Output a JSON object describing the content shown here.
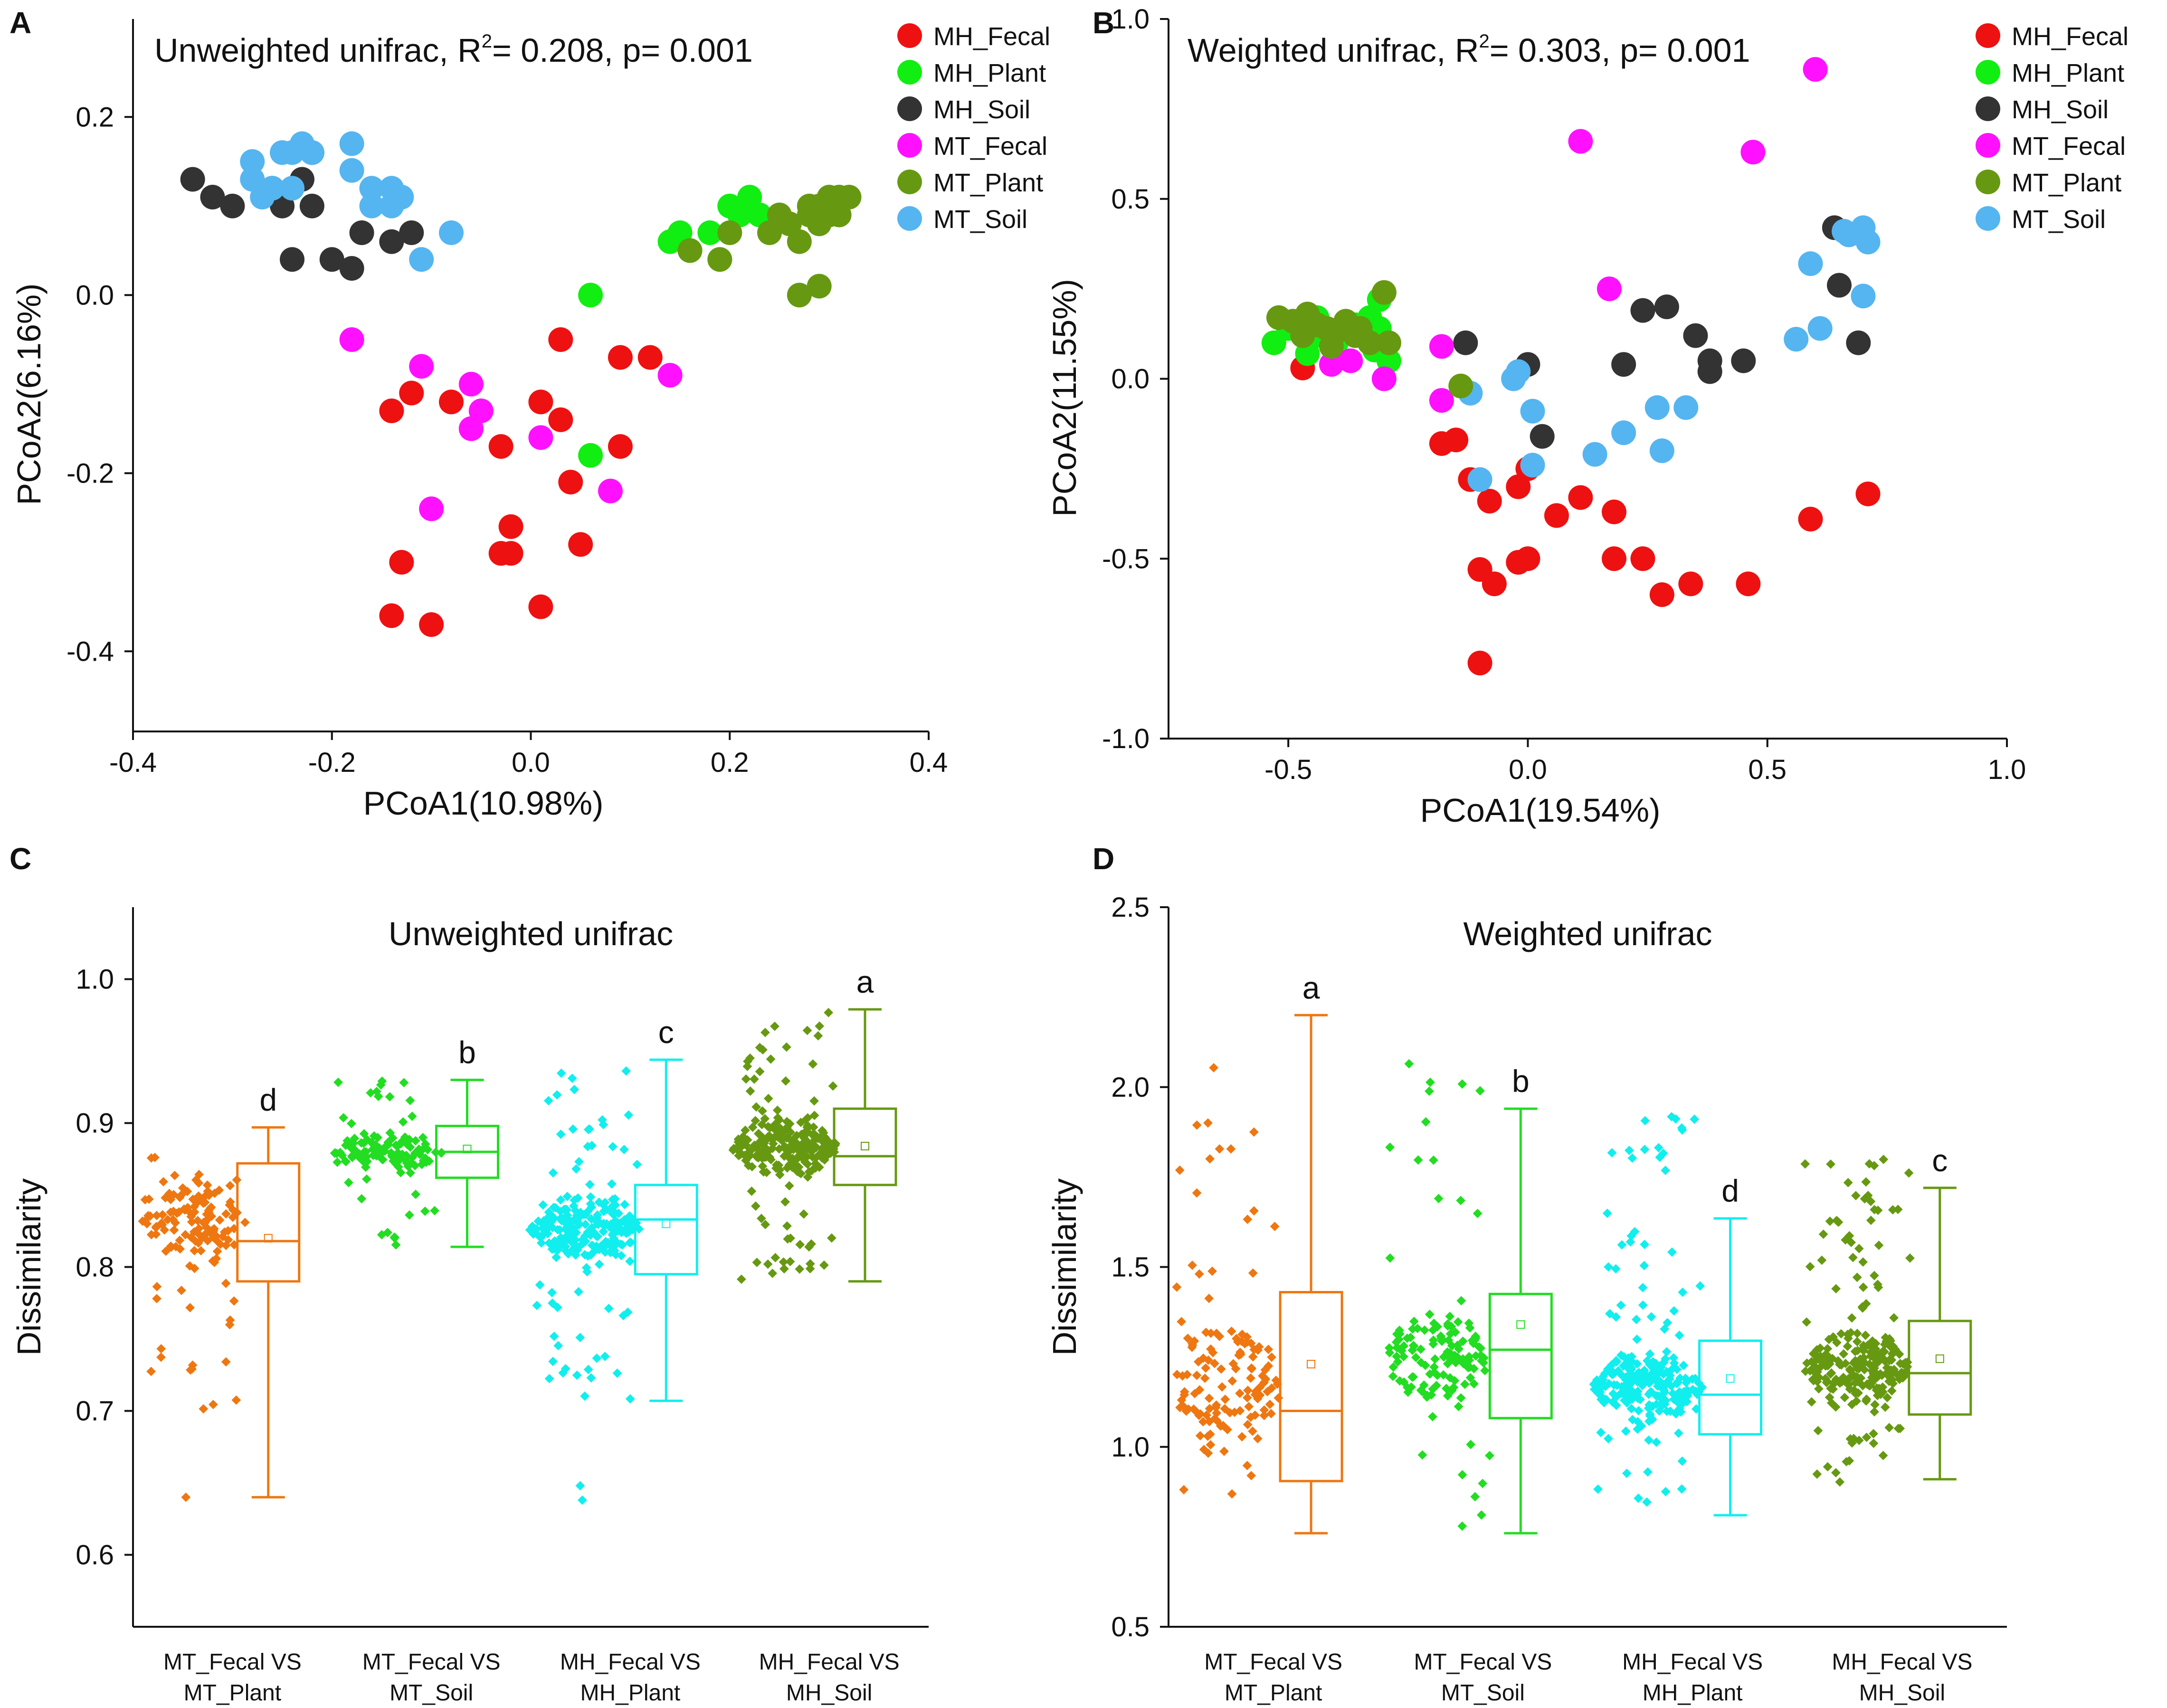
{
  "colors": {
    "MH_Fecal": "#ee1111",
    "MH_Plant": "#11ee11",
    "MH_Soil": "#333333",
    "MT_Fecal": "#ff11ff",
    "MT_Plant": "#669911",
    "MT_Soil": "#55b5f0",
    "box_orange": "#ee7711",
    "box_green": "#22dd22",
    "box_cyan": "#11eeee",
    "box_olive": "#669911"
  },
  "legend_order": [
    "MH_Fecal",
    "MH_Plant",
    "MH_Soil",
    "MT_Fecal",
    "MT_Plant",
    "MT_Soil"
  ],
  "panels": {
    "A": {
      "letter": "A"
    },
    "B": {
      "letter": "B"
    },
    "C": {
      "letter": "C"
    },
    "D": {
      "letter": "D"
    }
  },
  "chart_data": [
    {
      "id": "A",
      "type": "scatter",
      "title": "Unweighted unifrac, R",
      "title_sup": "2",
      "title_rest": "= 0.208, p= 0.001",
      "xlabel": "PCoA1(10.98%)",
      "ylabel": "PCoA2(6.16%)",
      "xlim": [
        -0.4,
        0.4
      ],
      "ylim": [
        -0.49,
        0.31
      ],
      "xticks": [
        -0.4,
        -0.2,
        0.0,
        0.2,
        0.4
      ],
      "xtick_labels": [
        "-0.4",
        "-0.2",
        "0.0",
        "0.2",
        "0.4"
      ],
      "yticks": [
        0.2,
        0.0,
        -0.2,
        -0.4
      ],
      "ytick_labels": [
        "0.2",
        "0.0",
        "-0.2",
        "-0.4"
      ],
      "legend": "top-right",
      "series": [
        {
          "name": "MH_Fecal",
          "points": [
            [
              -0.14,
              -0.13
            ],
            [
              -0.12,
              -0.11
            ],
            [
              -0.08,
              -0.12
            ],
            [
              -0.06,
              -0.15
            ],
            [
              -0.03,
              -0.17
            ],
            [
              0.01,
              -0.12
            ],
            [
              0.03,
              -0.14
            ],
            [
              0.03,
              -0.05
            ],
            [
              0.04,
              -0.21
            ],
            [
              0.05,
              -0.28
            ],
            [
              0.09,
              -0.07
            ],
            [
              0.12,
              -0.07
            ],
            [
              0.09,
              -0.17
            ],
            [
              -0.03,
              -0.29
            ],
            [
              -0.02,
              -0.29
            ],
            [
              -0.02,
              -0.26
            ],
            [
              0.01,
              -0.35
            ],
            [
              -0.13,
              -0.3
            ],
            [
              -0.14,
              -0.36
            ],
            [
              -0.1,
              -0.37
            ]
          ]
        },
        {
          "name": "MH_Plant",
          "points": [
            [
              0.06,
              0.0
            ],
            [
              0.06,
              -0.18
            ],
            [
              0.14,
              0.06
            ],
            [
              0.15,
              0.07
            ],
            [
              0.18,
              0.07
            ],
            [
              0.2,
              0.1
            ],
            [
              0.22,
              0.11
            ],
            [
              0.21,
              0.09
            ],
            [
              0.23,
              0.09
            ],
            [
              0.16,
              0.05
            ],
            [
              0.19,
              0.04
            ]
          ]
        },
        {
          "name": "MH_Soil",
          "points": [
            [
              -0.34,
              0.13
            ],
            [
              -0.32,
              0.11
            ],
            [
              -0.3,
              0.1
            ],
            [
              -0.26,
              0.12
            ],
            [
              -0.25,
              0.1
            ],
            [
              -0.23,
              0.13
            ],
            [
              -0.22,
              0.16
            ],
            [
              -0.22,
              0.1
            ],
            [
              -0.24,
              0.04
            ],
            [
              -0.2,
              0.04
            ],
            [
              -0.18,
              0.03
            ],
            [
              -0.17,
              0.07
            ],
            [
              -0.14,
              0.06
            ],
            [
              -0.12,
              0.07
            ]
          ]
        },
        {
          "name": "MT_Fecal",
          "points": [
            [
              -0.18,
              -0.05
            ],
            [
              -0.11,
              -0.08
            ],
            [
              -0.06,
              -0.1
            ],
            [
              -0.05,
              -0.13
            ],
            [
              -0.06,
              -0.15
            ],
            [
              0.01,
              -0.16
            ],
            [
              -0.1,
              -0.24
            ],
            [
              0.08,
              -0.22
            ],
            [
              0.14,
              -0.09
            ]
          ]
        },
        {
          "name": "MT_Plant",
          "points": [
            [
              0.26,
              0.08
            ],
            [
              0.27,
              0.06
            ],
            [
              0.28,
              0.09
            ],
            [
              0.29,
              0.1
            ],
            [
              0.3,
              0.11
            ],
            [
              0.31,
              0.11
            ],
            [
              0.32,
              0.11
            ],
            [
              0.3,
              0.09
            ],
            [
              0.29,
              0.08
            ],
            [
              0.31,
              0.09
            ],
            [
              0.27,
              0.0
            ],
            [
              0.29,
              0.01
            ],
            [
              0.25,
              0.09
            ],
            [
              0.16,
              0.05
            ],
            [
              0.19,
              0.04
            ],
            [
              0.2,
              0.07
            ],
            [
              0.24,
              0.07
            ],
            [
              0.28,
              0.1
            ],
            [
              0.3,
              0.1
            ]
          ]
        },
        {
          "name": "MT_Soil",
          "points": [
            [
              -0.28,
              0.15
            ],
            [
              -0.28,
              0.13
            ],
            [
              -0.27,
              0.11
            ],
            [
              -0.25,
              0.16
            ],
            [
              -0.24,
              0.16
            ],
            [
              -0.23,
              0.17
            ],
            [
              -0.22,
              0.16
            ],
            [
              -0.24,
              0.12
            ],
            [
              -0.18,
              0.17
            ],
            [
              -0.18,
              0.14
            ],
            [
              -0.16,
              0.12
            ],
            [
              -0.14,
              0.12
            ],
            [
              -0.13,
              0.11
            ],
            [
              -0.16,
              0.1
            ],
            [
              -0.14,
              0.1
            ],
            [
              -0.11,
              0.04
            ],
            [
              -0.08,
              0.07
            ],
            [
              -0.26,
              0.12
            ]
          ]
        }
      ]
    },
    {
      "id": "B",
      "type": "scatter",
      "title": "Weighted unifrac, R",
      "title_sup": "2",
      "title_rest": "= 0.303, p= 0.001",
      "xlabel": "PCoA1(19.54%)",
      "ylabel": "PCoA2(11.55%)",
      "xlim": [
        -0.75,
        1.0
      ],
      "ylim": [
        -1.0,
        1.0
      ],
      "xticks": [
        -0.5,
        0.0,
        0.5,
        1.0
      ],
      "xtick_labels": [
        "-0.5",
        "0.0",
        "0.5",
        "1.0"
      ],
      "yticks": [
        1.0,
        0.5,
        0.0,
        -0.5,
        -1.0
      ],
      "ytick_labels": [
        "1.0",
        "0.5",
        "0.0",
        "-0.5",
        "-1.0"
      ],
      "legend": "top-right",
      "series": [
        {
          "name": "MH_Fecal",
          "points": [
            [
              -0.47,
              0.03
            ],
            [
              -0.18,
              -0.18
            ],
            [
              -0.15,
              -0.17
            ],
            [
              -0.12,
              -0.28
            ],
            [
              -0.08,
              -0.34
            ],
            [
              -0.02,
              -0.3
            ],
            [
              0.0,
              -0.25
            ],
            [
              0.06,
              -0.38
            ],
            [
              0.11,
              -0.33
            ],
            [
              0.18,
              -0.37
            ],
            [
              -0.1,
              -0.53
            ],
            [
              -0.07,
              -0.57
            ],
            [
              -0.02,
              -0.51
            ],
            [
              0.0,
              -0.5
            ],
            [
              0.18,
              -0.5
            ],
            [
              0.24,
              -0.5
            ],
            [
              0.28,
              -0.6
            ],
            [
              0.34,
              -0.57
            ],
            [
              0.46,
              -0.57
            ],
            [
              0.59,
              -0.39
            ],
            [
              0.71,
              -0.32
            ],
            [
              -0.1,
              -0.79
            ]
          ]
        },
        {
          "name": "MH_Plant",
          "points": [
            [
              -0.53,
              0.1
            ],
            [
              -0.5,
              0.14
            ],
            [
              -0.46,
              0.07
            ],
            [
              -0.43,
              0.12
            ],
            [
              -0.4,
              0.1
            ],
            [
              -0.36,
              0.15
            ],
            [
              -0.33,
              0.17
            ],
            [
              -0.32,
              0.08
            ],
            [
              -0.31,
              0.14
            ],
            [
              -0.29,
              0.05
            ],
            [
              -0.31,
              0.22
            ],
            [
              -0.44,
              0.17
            ]
          ]
        },
        {
          "name": "MH_Soil",
          "points": [
            [
              -0.13,
              0.1
            ],
            [
              0.0,
              0.04
            ],
            [
              0.03,
              -0.16
            ],
            [
              0.24,
              0.19
            ],
            [
              0.29,
              0.2
            ],
            [
              0.35,
              0.12
            ],
            [
              0.38,
              0.05
            ],
            [
              0.45,
              0.05
            ],
            [
              0.64,
              0.42
            ],
            [
              0.65,
              0.26
            ],
            [
              0.69,
              0.1
            ],
            [
              0.2,
              0.04
            ],
            [
              0.38,
              0.02
            ]
          ]
        },
        {
          "name": "MT_Fecal",
          "points": [
            [
              0.6,
              0.86
            ],
            [
              0.47,
              0.63
            ],
            [
              0.11,
              0.66
            ],
            [
              0.17,
              0.25
            ],
            [
              -0.18,
              0.09
            ],
            [
              -0.18,
              -0.06
            ],
            [
              -0.3,
              0.0
            ],
            [
              -0.41,
              0.04
            ],
            [
              -0.37,
              0.05
            ]
          ]
        },
        {
          "name": "MT_Soil",
          "points": [
            [
              -0.12,
              -0.04
            ],
            [
              -0.1,
              -0.28
            ],
            [
              -0.03,
              0.0
            ],
            [
              -0.02,
              0.02
            ],
            [
              0.01,
              -0.09
            ],
            [
              0.01,
              -0.24
            ],
            [
              0.14,
              -0.21
            ],
            [
              0.2,
              -0.15
            ],
            [
              0.27,
              -0.08
            ],
            [
              0.28,
              -0.2
            ],
            [
              0.33,
              -0.08
            ],
            [
              0.56,
              0.11
            ],
            [
              0.59,
              0.32
            ],
            [
              0.61,
              0.14
            ],
            [
              0.67,
              0.4
            ],
            [
              0.7,
              0.42
            ],
            [
              0.71,
              0.38
            ],
            [
              0.7,
              0.23
            ],
            [
              0.66,
              0.41
            ]
          ]
        },
        {
          "name": "MT_Plant",
          "points": [
            [
              -0.52,
              0.17
            ],
            [
              -0.49,
              0.16
            ],
            [
              -0.46,
              0.18
            ],
            [
              -0.44,
              0.15
            ],
            [
              -0.42,
              0.14
            ],
            [
              -0.4,
              0.13
            ],
            [
              -0.38,
              0.16
            ],
            [
              -0.36,
              0.12
            ],
            [
              -0.35,
              0.14
            ],
            [
              -0.33,
              0.1
            ],
            [
              -0.3,
              0.24
            ],
            [
              -0.29,
              0.1
            ],
            [
              -0.14,
              -0.02
            ],
            [
              -0.47,
              0.12
            ],
            [
              -0.41,
              0.09
            ]
          ]
        }
      ]
    },
    {
      "id": "C",
      "type": "box",
      "title": "Unweighted unifrac",
      "ylabel": "Dissimilarity",
      "ylim": [
        0.55,
        1.05
      ],
      "yticks": [
        1.0,
        0.9,
        0.8,
        0.7,
        0.6
      ],
      "ytick_labels": [
        "1.0",
        "0.9",
        "0.8",
        "0.7",
        "0.6"
      ],
      "groups": [
        {
          "label1": "MT_Fecal VS",
          "label2": "MT_Plant",
          "letter": "d",
          "color_key": "box_orange",
          "min": 0.64,
          "q1": 0.79,
          "median": 0.818,
          "mean": 0.82,
          "q3": 0.872,
          "max": 0.897,
          "jitter_lo": 0.7,
          "jitter_hi": 0.895,
          "jitter_center": 0.81,
          "n": 140,
          "outliers": [
            0.64
          ]
        },
        {
          "label1": "MT_Fecal VS",
          "label2": "MT_Soil",
          "letter": "b",
          "color_key": "box_green",
          "min": 0.814,
          "q1": 0.862,
          "median": 0.88,
          "mean": 0.882,
          "q3": 0.898,
          "max": 0.93,
          "jitter_lo": 0.813,
          "jitter_hi": 0.93,
          "jitter_center": 0.876,
          "n": 140,
          "outliers": []
        },
        {
          "label1": "MH_Fecal VS",
          "label2": "MH_Plant",
          "letter": "c",
          "color_key": "box_cyan",
          "min": 0.707,
          "q1": 0.795,
          "median": 0.833,
          "mean": 0.83,
          "q3": 0.857,
          "max": 0.944,
          "jitter_lo": 0.705,
          "jitter_hi": 0.944,
          "jitter_center": 0.83,
          "n": 260,
          "outliers": [
            0.648,
            0.638
          ]
        },
        {
          "label1": "MH_Fecal VS",
          "label2": "MH_Soil",
          "letter": "a",
          "color_key": "box_olive",
          "min": 0.79,
          "q1": 0.857,
          "median": 0.877,
          "mean": 0.884,
          "q3": 0.91,
          "max": 0.979,
          "jitter_lo": 0.79,
          "jitter_hi": 0.979,
          "jitter_center": 0.875,
          "n": 260,
          "outliers": []
        }
      ]
    },
    {
      "id": "D",
      "type": "box",
      "title": "Weighted unifrac",
      "ylabel": "Dissimilarity",
      "ylim": [
        0.5,
        2.5
      ],
      "yticks": [
        2.5,
        2.0,
        1.5,
        1.0,
        0.5
      ],
      "ytick_labels": [
        "2.5",
        "2.0",
        "1.5",
        "1.0",
        "0.5"
      ],
      "groups": [
        {
          "label1": "MT_Fecal VS",
          "label2": "MT_Plant",
          "letter": "a",
          "color_key": "box_orange",
          "min": 0.76,
          "q1": 0.905,
          "median": 1.1,
          "mean": 1.23,
          "q3": 1.43,
          "max": 2.2,
          "jitter_lo": 0.77,
          "jitter_hi": 2.2,
          "jitter_center": 0.95,
          "n": 140,
          "outliers": []
        },
        {
          "label1": "MT_Fecal VS",
          "label2": "MT_Soil",
          "letter": "b",
          "color_key": "box_green",
          "min": 0.76,
          "q1": 1.08,
          "median": 1.27,
          "mean": 1.34,
          "q3": 1.425,
          "max": 1.94,
          "jitter_lo": 0.76,
          "jitter_hi": 2.08,
          "jitter_center": 1.25,
          "n": 140,
          "outliers": []
        },
        {
          "label1": "MH_Fecal VS",
          "label2": "MH_Plant",
          "letter": "d",
          "color_key": "box_cyan",
          "min": 0.81,
          "q1": 1.035,
          "median": 1.145,
          "mean": 1.19,
          "q3": 1.295,
          "max": 1.635,
          "jitter_lo": 0.8,
          "jitter_hi": 1.94,
          "jitter_center": 1.15,
          "n": 260,
          "outliers": []
        },
        {
          "label1": "MH_Fecal VS",
          "label2": "MH_Soil",
          "letter": "c",
          "color_key": "box_olive",
          "min": 0.91,
          "q1": 1.09,
          "median": 1.205,
          "mean": 1.245,
          "q3": 1.35,
          "max": 1.72,
          "jitter_lo": 0.9,
          "jitter_hi": 1.8,
          "jitter_center": 1.18,
          "n": 260,
          "outliers": []
        }
      ]
    }
  ]
}
